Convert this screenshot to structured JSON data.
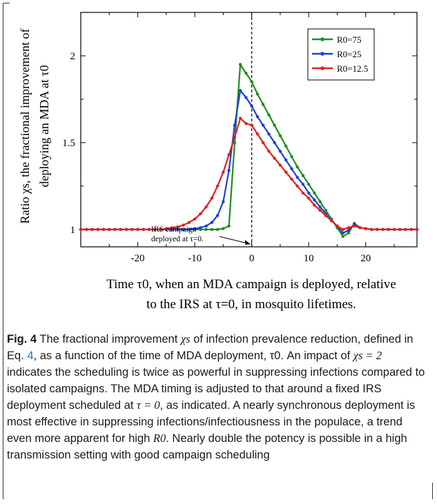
{
  "chart_data": {
    "type": "line",
    "ylabel_line1": "Ratio  χs, the fractional improvement of",
    "ylabel_line2": "deploying an MDA at τ0",
    "xlabel_line1": "Time τ0, when an MDA campaign is deployed, relative",
    "xlabel_line2": "to the IRS at τ=0, in mosquito lifetimes.",
    "xlim": [
      -30,
      29
    ],
    "ylim": [
      0.9,
      2.25
    ],
    "xticks": [
      -20,
      -10,
      0,
      10,
      20
    ],
    "yticks": [
      1,
      1.5,
      2
    ],
    "ytick_labels": [
      "1",
      "1.5",
      "2"
    ],
    "vline_x": 0,
    "annotation": {
      "line1": "IRS campaign",
      "line2": "deployed at τ=0.",
      "arrow_to": [
        0,
        0.9
      ]
    },
    "legend_position": "top-right",
    "series": [
      {
        "name": "R0=75",
        "color": "#1a8f1a",
        "x": [
          -30,
          -29,
          -28,
          -27,
          -26,
          -25,
          -24,
          -23,
          -22,
          -21,
          -20,
          -19,
          -18,
          -17,
          -16,
          -15,
          -14,
          -13,
          -12,
          -11,
          -10,
          -9,
          -8,
          -7,
          -6,
          -5,
          -4,
          -3,
          -2,
          -1,
          0,
          1,
          2,
          3,
          4,
          5,
          6,
          7,
          8,
          9,
          10,
          11,
          12,
          13,
          14,
          15,
          16,
          17,
          18,
          19,
          20,
          21,
          22,
          23,
          24,
          25,
          26,
          27,
          28,
          29
        ],
        "y": [
          1,
          1,
          1,
          1,
          1,
          1,
          1,
          1,
          1,
          1,
          1,
          1,
          1,
          1,
          1,
          1,
          1,
          1,
          1,
          1,
          1,
          1,
          1,
          1,
          1,
          1.005,
          1.02,
          1.5,
          1.95,
          1.9,
          1.85,
          1.78,
          1.72,
          1.66,
          1.6,
          1.54,
          1.48,
          1.42,
          1.36,
          1.31,
          1.26,
          1.21,
          1.16,
          1.11,
          1.06,
          1.01,
          0.96,
          0.98,
          1.035,
          1.01,
          1.005,
          1,
          1,
          1,
          1,
          1,
          1,
          1,
          1,
          1
        ]
      },
      {
        "name": "R0=25",
        "color": "#1f3fd6",
        "x": [
          -30,
          -29,
          -28,
          -27,
          -26,
          -25,
          -24,
          -23,
          -22,
          -21,
          -20,
          -19,
          -18,
          -17,
          -16,
          -15,
          -14,
          -13,
          -12,
          -11,
          -10,
          -9,
          -8,
          -7,
          -6,
          -5,
          -4,
          -3,
          -2,
          -1,
          0,
          1,
          2,
          3,
          4,
          5,
          6,
          7,
          8,
          9,
          10,
          11,
          12,
          13,
          14,
          15,
          16,
          17,
          18,
          19,
          20,
          21,
          22,
          23,
          24,
          25,
          26,
          27,
          28,
          29
        ],
        "y": [
          1,
          1,
          1,
          1,
          1,
          1,
          1,
          1,
          1,
          1,
          1,
          1,
          1,
          1,
          1,
          1,
          1,
          1,
          1,
          1,
          1.005,
          1.01,
          1.02,
          1.04,
          1.08,
          1.16,
          1.34,
          1.6,
          1.8,
          1.76,
          1.71,
          1.65,
          1.6,
          1.55,
          1.5,
          1.45,
          1.4,
          1.35,
          1.3,
          1.26,
          1.21,
          1.17,
          1.13,
          1.09,
          1.05,
          1.02,
          0.98,
          0.995,
          1.03,
          1.01,
          1.005,
          1,
          1,
          1,
          1,
          1,
          1,
          1,
          1,
          1
        ]
      },
      {
        "name": "R0=12.5",
        "color": "#e02020",
        "x": [
          -30,
          -29,
          -28,
          -27,
          -26,
          -25,
          -24,
          -23,
          -22,
          -21,
          -20,
          -19,
          -18,
          -17,
          -16,
          -15,
          -14,
          -13,
          -12,
          -11,
          -10,
          -9,
          -8,
          -7,
          -6,
          -5,
          -4,
          -3,
          -2,
          -1,
          0,
          1,
          2,
          3,
          4,
          5,
          6,
          7,
          8,
          9,
          10,
          11,
          12,
          13,
          14,
          15,
          16,
          17,
          18,
          19,
          20,
          21,
          22,
          23,
          24,
          25,
          26,
          27,
          28,
          29
        ],
        "y": [
          1,
          1,
          1,
          1,
          1,
          1,
          1,
          1,
          1,
          1,
          1,
          1,
          1,
          1,
          1,
          1.005,
          1.01,
          1.015,
          1.025,
          1.04,
          1.06,
          1.09,
          1.13,
          1.18,
          1.25,
          1.33,
          1.43,
          1.53,
          1.64,
          1.61,
          1.6,
          1.55,
          1.5,
          1.45,
          1.41,
          1.37,
          1.33,
          1.29,
          1.25,
          1.21,
          1.18,
          1.14,
          1.11,
          1.08,
          1.05,
          1.02,
          1.0,
          1.01,
          1.02,
          1.01,
          1.005,
          1,
          1,
          1,
          1,
          1,
          1,
          1,
          1,
          1
        ]
      }
    ]
  },
  "caption": {
    "fig_label": "Fig. 4",
    "text_parts": [
      " The fractional improvement ",
      "χs",
      " of infection prevalence reduction, defined in Eq. ",
      "4",
      ", as a function of the time of MDA deployment, τ0. An impact of ",
      "χs = 2",
      " indicates the scheduling is twice as powerful in suppressing infections compared to isolated campaigns. The MDA timing is adjusted to that around a fixed IRS deployment scheduled at ",
      "τ = 0",
      ", as indicated. A nearly synchronous deployment is most effective in suppressing infections/infectiousness in the populace, a trend even more apparent for high ",
      "R0",
      ". Nearly double the potency is possible in a high transmission setting with good campaign scheduling"
    ]
  }
}
